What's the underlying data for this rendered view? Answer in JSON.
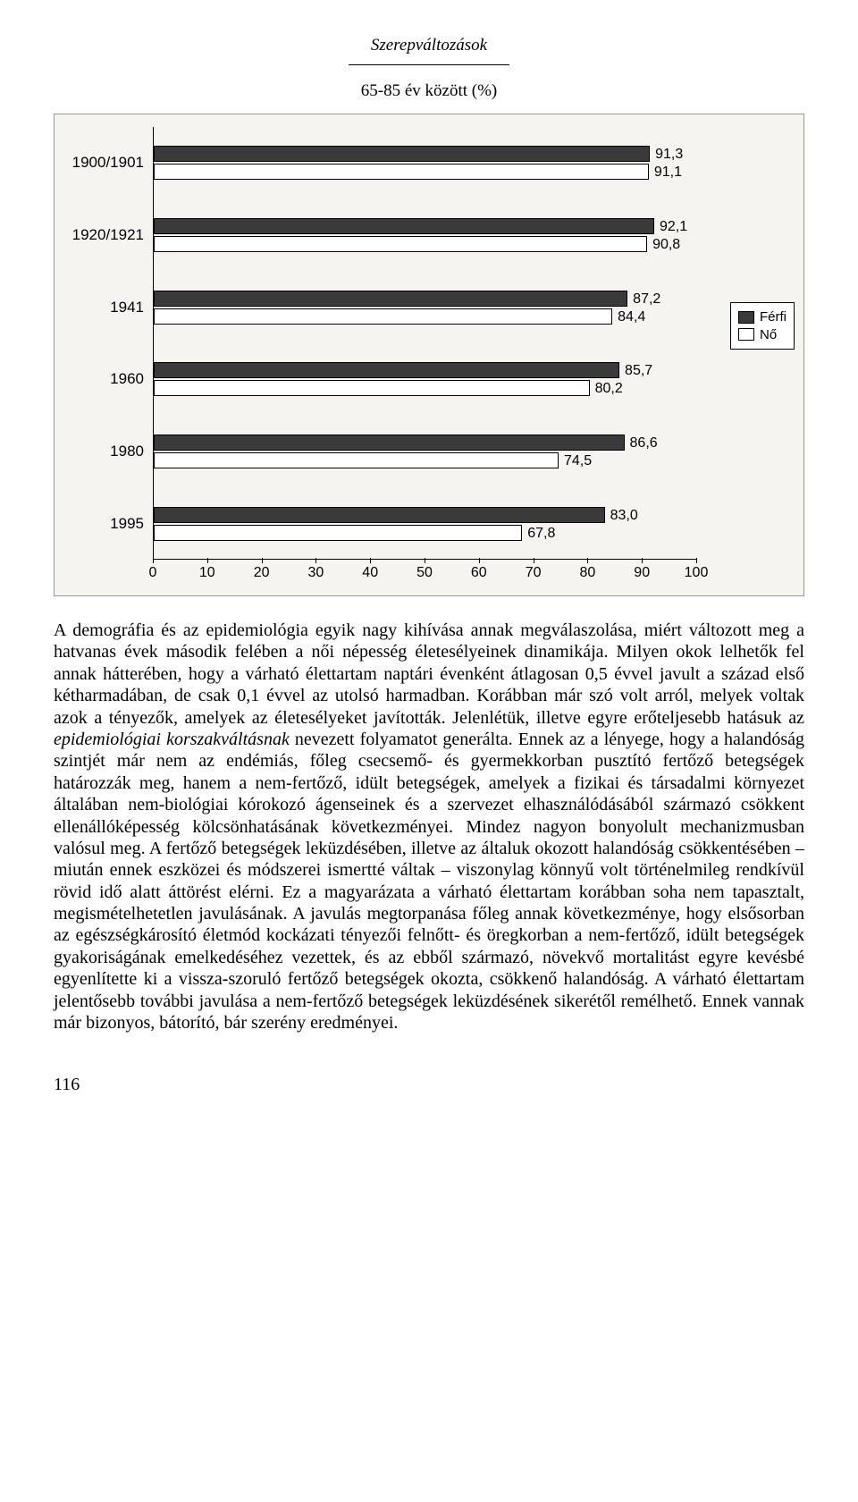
{
  "running_head": "Szerepváltozások",
  "chart": {
    "caption": "65-85 év között (%)",
    "type": "bar",
    "orientation": "horizontal",
    "x_min": 0,
    "x_max": 100,
    "x_tick_step": 10,
    "background_color": "#f6f4f1",
    "axis_color": "#000000",
    "male_color": "#3a3a3a",
    "female_color": "#ffffff",
    "bar_border_color": "#000000",
    "label_fontsize": 16,
    "axis_fontsize": 16,
    "legend": {
      "items": [
        {
          "label": "Férfi",
          "swatch": "m"
        },
        {
          "label": "Nő",
          "swatch": "f"
        }
      ]
    },
    "categories": [
      {
        "label": "1900/1901",
        "male": 91.3,
        "female": 91.1
      },
      {
        "label": "1920/1921",
        "male": 92.1,
        "female": 90.8
      },
      {
        "label": "1941",
        "male": 87.2,
        "female": 84.4
      },
      {
        "label": "1960",
        "male": 85.7,
        "female": 80.2
      },
      {
        "label": "1980",
        "male": 86.6,
        "female": 74.5
      },
      {
        "label": "1995",
        "male": 83.0,
        "female": 67.8
      }
    ]
  },
  "paragraph": {
    "p1": "A demográfia és az epidemiológia egyik nagy kihívása annak megválaszolása, miért változott meg a hatvanas évek második felében a női népesség életesélyeinek dinamikája. Milyen okok lelhetők fel annak hátterében, hogy a várható élettartam naptári évenként átlagosan 0,5 évvel javult a század első kétharmadában, de csak 0,1 évvel az utolsó harmadban. Korábban már szó volt arról, melyek voltak azok a tényezők, amelyek az életesélyeket javították. Jelenlétük, illetve egyre erőteljesebb hatásuk az ",
    "em": "epidemiológiai korszakváltásnak",
    "p2": " nevezett folyamatot generálta. Ennek az a lényege, hogy a halandóság szintjét már nem az endémiás, főleg csecsemő- és gyermekkorban pusztító fertőző betegségek határozzák meg, hanem a nem-fertőző, idült betegségek, amelyek a fizikai és társadalmi környezet általában nem-biológiai kórokozó ágenseinek és a szervezet elhasználódásából származó csökkent ellenállóképesség kölcsönhatásának következményei. Mindez nagyon bonyolult mechanizmusban valósul meg. A fertőző betegségek leküzdésében, illetve az általuk okozott halandóság csökkentésében – miután ennek eszközei és módszerei ismertté váltak – viszonylag könnyű volt történelmileg rendkívül rövid idő alatt áttörést elérni. Ez a magyarázata a várható élettartam korábban soha nem tapasztalt, megismételhetetlen javulásának. A javulás megtorpanása főleg annak következménye, hogy elsősorban az egészségkárosító életmód kockázati tényezői felnőtt- és öregkorban a nem-fertőző, idült betegségek gyakoriságának emelkedéséhez vezettek, és az ebből származó, növekvő mortalitást egyre kevésbé egyenlítette ki a vissza-szoruló fertőző betegségek okozta, csökkenő halandóság. A várható élettartam jelentősebb további javulása a nem-fertőző betegségek leküzdésének sikerétől remélhető. Ennek vannak már bizonyos, bátorító, bár szerény eredményei."
  },
  "page_number": "116"
}
